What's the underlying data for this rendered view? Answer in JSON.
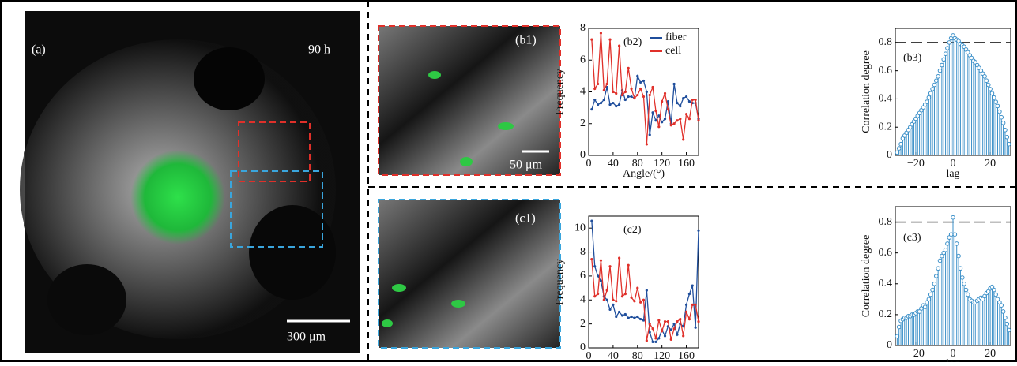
{
  "panels": {
    "a": {
      "label": "(a)",
      "time": "90 h",
      "scale": "300 μm"
    },
    "b1": {
      "label": "(b1)",
      "scale": "50 μm"
    },
    "c1": {
      "label": "(c1)"
    }
  },
  "chart_data": [
    {
      "type": "line",
      "annotation": "(b2)",
      "xlabel": "Angle/(°)",
      "ylabel": "Frequency",
      "legend": "upper right",
      "x": [
        5,
        10,
        15,
        20,
        25,
        30,
        35,
        40,
        45,
        50,
        55,
        60,
        65,
        70,
        75,
        80,
        85,
        90,
        95,
        100,
        105,
        110,
        115,
        120,
        125,
        130,
        135,
        140,
        145,
        150,
        155,
        160,
        165,
        170,
        175,
        180
      ],
      "series": [
        {
          "name": "fiber",
          "color": "#1f4e9c",
          "values": [
            2.9,
            3.5,
            3.2,
            3.3,
            3.5,
            4.3,
            3.2,
            3.3,
            3.1,
            3.2,
            4.1,
            3.5,
            3.7,
            3.7,
            3.6,
            5.0,
            4.6,
            4.7,
            4.0,
            1.3,
            2.7,
            2.2,
            2.5,
            2.1,
            2.3,
            3.4,
            2.0,
            4.5,
            3.3,
            3.1,
            3.6,
            3.7,
            3.4,
            3.3,
            3.3,
            2.3
          ]
        },
        {
          "name": "cell",
          "color": "#e0302a",
          "values": [
            7.3,
            4.2,
            4.5,
            7.7,
            4.1,
            4.5,
            7.3,
            4.0,
            3.9,
            6.9,
            3.8,
            4.0,
            5.5,
            4.2,
            3.6,
            3.8,
            4.2,
            3.7,
            0.7,
            3.8,
            4.3,
            2.8,
            1.8,
            3.4,
            3.9,
            2.9,
            1.9,
            2.0,
            2.2,
            2.3,
            1.0,
            2.6,
            2.3,
            3.5,
            3.5,
            2.2
          ]
        }
      ],
      "xlim": [
        0,
        180
      ],
      "xticks": [
        0,
        40,
        80,
        120,
        160
      ],
      "ylim": [
        0,
        8
      ],
      "yticks": [
        0,
        2,
        4,
        6,
        8
      ]
    },
    {
      "type": "stem",
      "annotation": "(b3)",
      "xlabel": "lag",
      "ylabel": "Correlation degree",
      "color": "#3a8fc8",
      "threshold": 0.8,
      "x": [
        -30,
        -29,
        -28,
        -27,
        -26,
        -25,
        -24,
        -23,
        -22,
        -21,
        -20,
        -19,
        -18,
        -17,
        -16,
        -15,
        -14,
        -13,
        -12,
        -11,
        -10,
        -9,
        -8,
        -7,
        -6,
        -5,
        -4,
        -3,
        -2,
        -1,
        0,
        1,
        2,
        3,
        4,
        5,
        6,
        7,
        8,
        9,
        10,
        11,
        12,
        13,
        14,
        15,
        16,
        17,
        18,
        19,
        20,
        21,
        22,
        23,
        24,
        25,
        26,
        27,
        28,
        29,
        30
      ],
      "values": [
        0.02,
        0.05,
        0.08,
        0.12,
        0.14,
        0.16,
        0.18,
        0.2,
        0.22,
        0.24,
        0.26,
        0.28,
        0.3,
        0.32,
        0.34,
        0.36,
        0.38,
        0.41,
        0.44,
        0.47,
        0.5,
        0.53,
        0.56,
        0.6,
        0.64,
        0.68,
        0.72,
        0.76,
        0.8,
        0.83,
        0.85,
        0.83,
        0.82,
        0.81,
        0.79,
        0.78,
        0.77,
        0.75,
        0.73,
        0.71,
        0.69,
        0.67,
        0.66,
        0.64,
        0.62,
        0.6,
        0.58,
        0.56,
        0.53,
        0.5,
        0.47,
        0.44,
        0.41,
        0.38,
        0.35,
        0.31,
        0.27,
        0.23,
        0.18,
        0.13,
        0.08
      ],
      "xlim": [
        -31,
        31
      ],
      "xticks": [
        {
          "value": -20,
          "label": "−20"
        },
        0,
        20
      ],
      "ylim": [
        0,
        0.9
      ],
      "yticks": [
        0,
        0.2,
        0.4,
        0.6,
        0.8
      ]
    },
    {
      "type": "line",
      "annotation": "(c2)",
      "xlabel": "Angle/(°)",
      "ylabel": "Frequency",
      "x": [
        5,
        10,
        15,
        20,
        25,
        30,
        35,
        40,
        45,
        50,
        55,
        60,
        65,
        70,
        75,
        80,
        85,
        90,
        95,
        100,
        105,
        110,
        115,
        120,
        125,
        130,
        135,
        140,
        145,
        150,
        155,
        160,
        165,
        170,
        175,
        180
      ],
      "series": [
        {
          "name": "fiber",
          "color": "#1f4e9c",
          "values": [
            10.6,
            6.8,
            6.0,
            5.6,
            4.3,
            4.0,
            3.2,
            3.6,
            2.6,
            3.0,
            2.7,
            2.8,
            2.5,
            2.6,
            2.5,
            2.6,
            2.4,
            2.3,
            4.8,
            1.3,
            0.5,
            0.5,
            0.8,
            1.5,
            1.0,
            1.8,
            1.5,
            2.0,
            1.1,
            2.0,
            1.8,
            3.6,
            4.5,
            5.2,
            1.7,
            9.8
          ]
        },
        {
          "name": "cell",
          "color": "#e0302a",
          "values": [
            7.4,
            4.3,
            4.5,
            7.3,
            4.0,
            4.8,
            6.8,
            4.0,
            3.9,
            7.5,
            4.3,
            4.5,
            6.9,
            4.2,
            3.9,
            5.0,
            3.8,
            4.0,
            0.6,
            2.0,
            1.6,
            0.8,
            2.3,
            1.4,
            2.2,
            2.2,
            0.7,
            1.6,
            2.2,
            2.4,
            1.0,
            3.0,
            2.4,
            3.6,
            3.6,
            2.2
          ]
        }
      ],
      "xlim": [
        0,
        180
      ],
      "xticks": [
        0,
        40,
        80,
        120,
        160
      ],
      "ylim": [
        0,
        11
      ],
      "yticks": [
        0,
        2,
        4,
        6,
        8,
        10
      ]
    },
    {
      "type": "stem",
      "annotation": "(c3)",
      "xlabel": "lag",
      "ylabel": "Correlation degree",
      "color": "#3a8fc8",
      "threshold": 0.8,
      "x": [
        -30,
        -29,
        -28,
        -27,
        -26,
        -25,
        -24,
        -23,
        -22,
        -21,
        -20,
        -19,
        -18,
        -17,
        -16,
        -15,
        -14,
        -13,
        -12,
        -11,
        -10,
        -9,
        -8,
        -7,
        -6,
        -5,
        -4,
        -3,
        -2,
        -1,
        0,
        1,
        2,
        3,
        4,
        5,
        6,
        7,
        8,
        9,
        10,
        11,
        12,
        13,
        14,
        15,
        16,
        17,
        18,
        19,
        20,
        21,
        22,
        23,
        24,
        25,
        26,
        27,
        28,
        29,
        30
      ],
      "values": [
        0.06,
        0.12,
        0.16,
        0.17,
        0.18,
        0.18,
        0.19,
        0.19,
        0.2,
        0.2,
        0.21,
        0.22,
        0.22,
        0.24,
        0.26,
        0.25,
        0.28,
        0.3,
        0.33,
        0.36,
        0.4,
        0.45,
        0.5,
        0.55,
        0.58,
        0.6,
        0.62,
        0.66,
        0.7,
        0.72,
        0.83,
        0.72,
        0.66,
        0.58,
        0.5,
        0.44,
        0.4,
        0.36,
        0.33,
        0.3,
        0.29,
        0.28,
        0.28,
        0.29,
        0.3,
        0.31,
        0.3,
        0.32,
        0.34,
        0.35,
        0.37,
        0.38,
        0.36,
        0.33,
        0.3,
        0.28,
        0.26,
        0.22,
        0.18,
        0.14,
        0.1
      ],
      "xlim": [
        -31,
        31
      ],
      "xticks": [
        {
          "value": -20,
          "label": "−20"
        },
        0,
        20
      ],
      "ylim": [
        0,
        0.9
      ],
      "yticks": [
        0,
        0.2,
        0.4,
        0.6,
        0.8
      ]
    }
  ]
}
